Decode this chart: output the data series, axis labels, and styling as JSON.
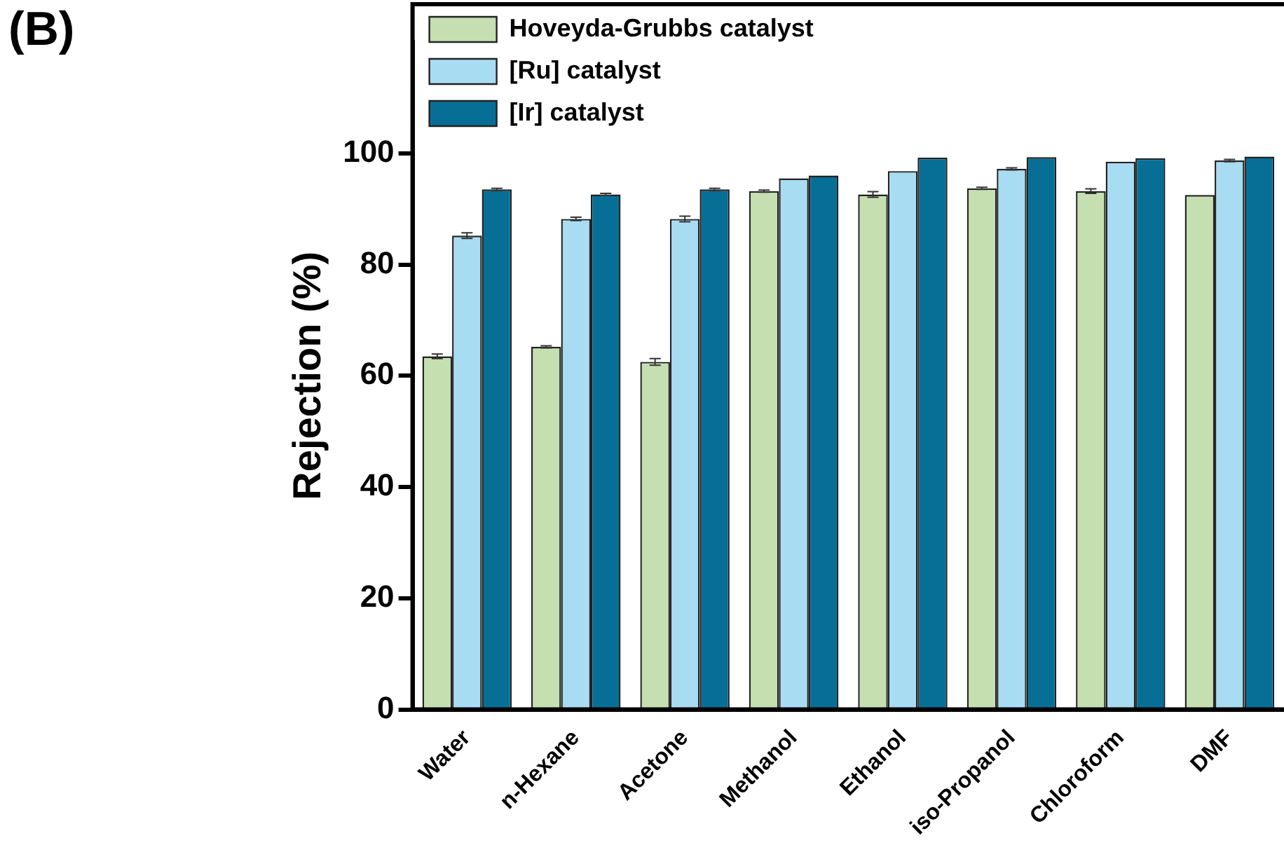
{
  "chart_data": {
    "type": "bar",
    "title": "(B)",
    "ylabel": "Rejection (%)",
    "categories": [
      "Water",
      "n-Hexane",
      "Acetone",
      "Methanol",
      "Ethanol",
      "iso-Propanol",
      "Chloroform",
      "DMF"
    ],
    "series": [
      {
        "name": "Hoveyda-Grubbs catalyst",
        "color": "#c5dfb0",
        "values": [
          63.5,
          65.2,
          62.5,
          93.2,
          92.6,
          93.7,
          93.2,
          92.5
        ],
        "errors": [
          0.4,
          0.2,
          0.6,
          0.2,
          0.5,
          0.2,
          0.4,
          null
        ]
      },
      {
        "name": "[Ru] catalyst",
        "color": "#a8dcf2",
        "values": [
          85.2,
          88.2,
          88.2,
          95.5,
          96.8,
          97.2,
          98.5,
          98.7
        ],
        "errors": [
          0.5,
          0.3,
          0.5,
          null,
          null,
          0.2,
          null,
          0.2
        ]
      },
      {
        "name": "[Ir] catalyst",
        "color": "#076f96",
        "values": [
          93.5,
          92.6,
          93.5,
          96.0,
          99.2,
          99.3,
          99.1,
          99.4
        ],
        "errors": [
          0.2,
          0.2,
          0.2,
          null,
          null,
          null,
          null,
          null
        ]
      }
    ],
    "ylim": [
      0,
      120
    ],
    "yticks": [
      0,
      20,
      40,
      60,
      80,
      100
    ],
    "grid": false,
    "legend": "top left"
  }
}
